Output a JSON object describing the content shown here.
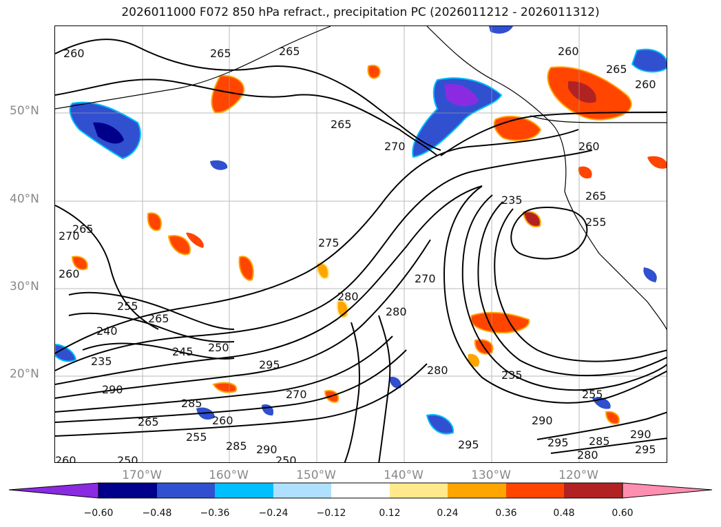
{
  "title": "2026011000 F072 850 hPa refract., precipitation PC (2026011212 - 2026011312)",
  "lat_labels": [
    "50°N",
    "40°N",
    "30°N",
    "20°N"
  ],
  "lon_labels": [
    "170°W",
    "160°W",
    "150°W",
    "140°W",
    "130°W",
    "120°W"
  ],
  "contour_labels": [
    "260",
    "265",
    "265",
    "260",
    "265",
    "260",
    "265",
    "260",
    "265",
    "270",
    "235",
    "255",
    "275",
    "270",
    "265",
    "260",
    "280",
    "280",
    "270",
    "265",
    "255",
    "240",
    "245",
    "250",
    "235",
    "290",
    "295",
    "270",
    "285",
    "265",
    "260",
    "255",
    "250",
    "285",
    "290",
    "280",
    "235",
    "290",
    "295",
    "295",
    "285",
    "280",
    "290",
    "295",
    "260",
    "250",
    "255",
    "290",
    "295"
  ],
  "colorbar": {
    "tick_labels": [
      "−0.60",
      "−0.48",
      "−0.36",
      "−0.24",
      "−0.12",
      "0.12",
      "0.24",
      "0.36",
      "0.48",
      "0.60"
    ],
    "colors": [
      "#8a2be2",
      "#00008b",
      "#3050d0",
      "#00bfff",
      "#b0e0ff",
      "#ffffff",
      "#ffe98a",
      "#ffa500",
      "#ff4500",
      "#b22222",
      "#ff8fb0"
    ]
  }
}
